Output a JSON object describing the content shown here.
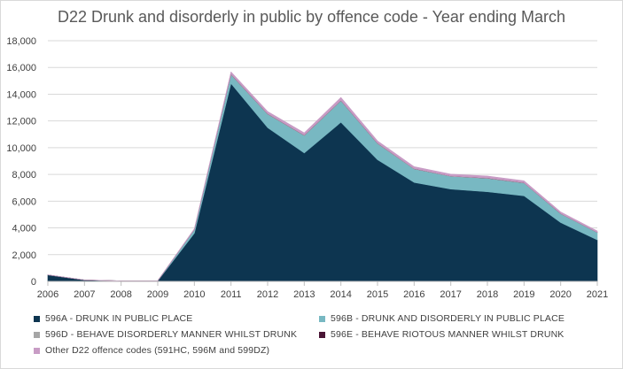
{
  "chart_data": {
    "type": "area",
    "stacked": true,
    "title": "D22 Drunk and disorderly in public by offence code - Year ending March",
    "xlabel": "",
    "ylabel": "",
    "categories": [
      "2006",
      "2007",
      "2008",
      "2009",
      "2010",
      "2011",
      "2012",
      "2013",
      "2014",
      "2015",
      "2016",
      "2017",
      "2018",
      "2019",
      "2020",
      "2021"
    ],
    "ylim": [
      0,
      18000
    ],
    "yticks": [
      "0",
      "2,000",
      "4,000",
      "6,000",
      "8,000",
      "10,000",
      "12,000",
      "14,000",
      "16,000",
      "18,000"
    ],
    "grid": true,
    "legend": "bottom",
    "series": [
      {
        "name": "596A - DRUNK IN PUBLIC PLACE",
        "color": "#0d3550",
        "values": [
          480,
          100,
          30,
          40,
          3600,
          14800,
          11500,
          9600,
          11900,
          9100,
          7400,
          6900,
          6700,
          6400,
          4400,
          3100
        ]
      },
      {
        "name": "596B - DRUNK AND DISORDERLY IN PUBLIC PLACE",
        "color": "#78b8c2",
        "values": [
          5,
          5,
          5,
          5,
          250,
          650,
          1000,
          1300,
          1600,
          1200,
          1000,
          950,
          1000,
          950,
          650,
          550
        ]
      },
      {
        "name": "596D - BEHAVE DISORDERLY MANNER WHILST DRUNK",
        "color": "#a6a6a6",
        "values": [
          2,
          2,
          2,
          2,
          30,
          40,
          30,
          30,
          30,
          30,
          25,
          25,
          25,
          25,
          20,
          15
        ]
      },
      {
        "name": "596E - BEHAVE RIOTOUS MANNER WHILST DRUNK",
        "color": "#4a1535",
        "values": [
          1,
          1,
          1,
          1,
          5,
          8,
          8,
          8,
          8,
          8,
          6,
          6,
          6,
          6,
          5,
          4
        ]
      },
      {
        "name": "Other D22 offence codes (591HC, 596M and 599DZ)",
        "color": "#c89cc5",
        "values": [
          2,
          2,
          2,
          2,
          60,
          170,
          170,
          170,
          220,
          170,
          150,
          140,
          150,
          140,
          120,
          100
        ]
      }
    ]
  }
}
